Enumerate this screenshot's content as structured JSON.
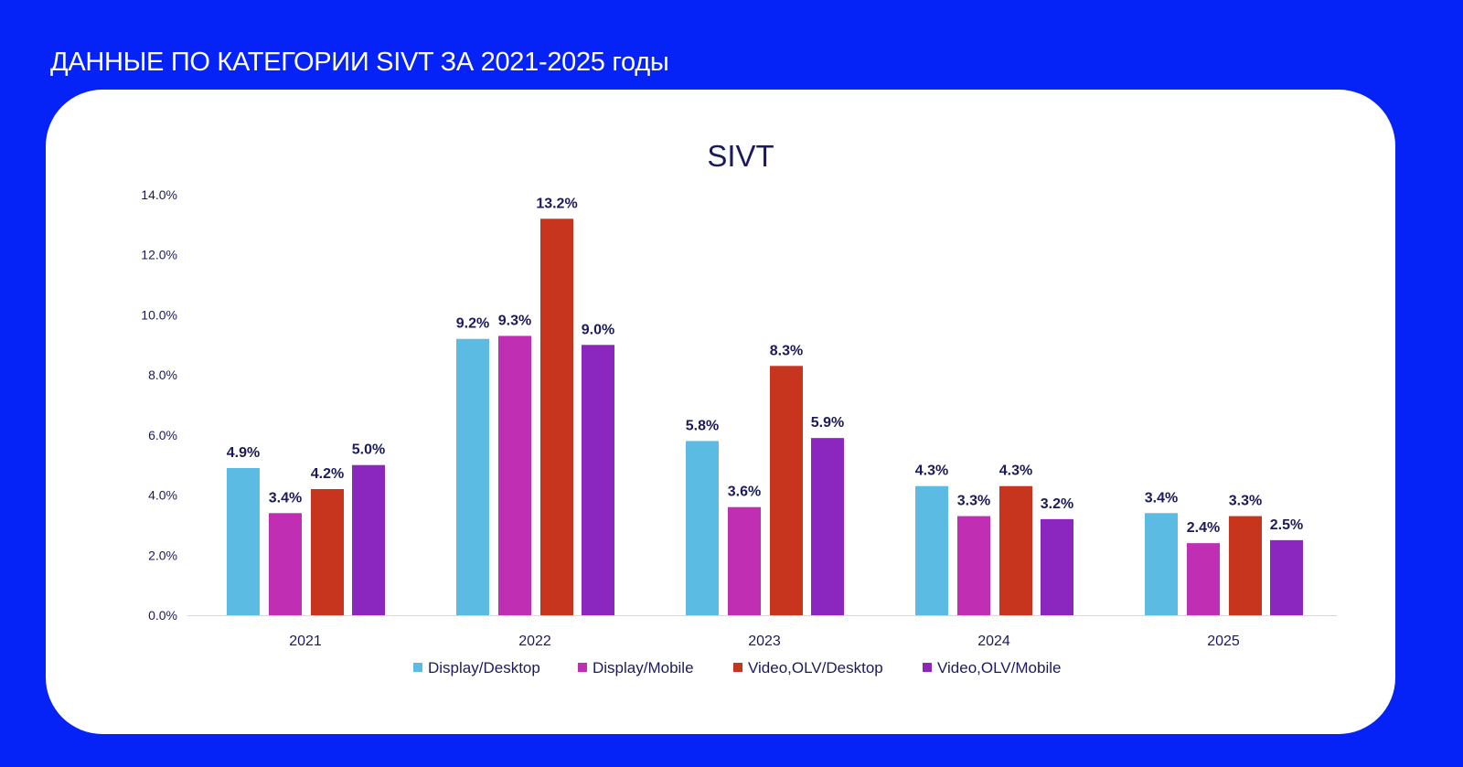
{
  "header": {
    "title": "ДАННЫЕ ПО КАТЕГОРИИ SIVT ЗА 2021-2025 годы"
  },
  "chart_data": {
    "type": "bar",
    "title": "SIVT",
    "categories": [
      "2021",
      "2022",
      "2023",
      "2024",
      "2025"
    ],
    "series": [
      {
        "name": "Display/Desktop",
        "color": "#5bbbe3",
        "values": [
          4.9,
          9.2,
          5.8,
          4.3,
          3.4
        ]
      },
      {
        "name": "Display/Mobile",
        "color": "#c02fb3",
        "values": [
          3.4,
          9.3,
          3.6,
          3.3,
          2.4
        ]
      },
      {
        "name": "Video,OLV/Desktop",
        "color": "#c8351e",
        "values": [
          4.2,
          13.2,
          8.3,
          4.3,
          3.3
        ]
      },
      {
        "name": "Video,OLV/Mobile",
        "color": "#8b26bf",
        "values": [
          5.0,
          9.0,
          5.9,
          3.2,
          2.5
        ]
      }
    ],
    "ylim": [
      0,
      14
    ],
    "yticks": [
      "0.0%",
      "2.0%",
      "4.0%",
      "6.0%",
      "8.0%",
      "10.0%",
      "12.0%",
      "14.0%"
    ],
    "value_format": "percent, 1 decimal",
    "grid": false,
    "legend": "bottom"
  }
}
